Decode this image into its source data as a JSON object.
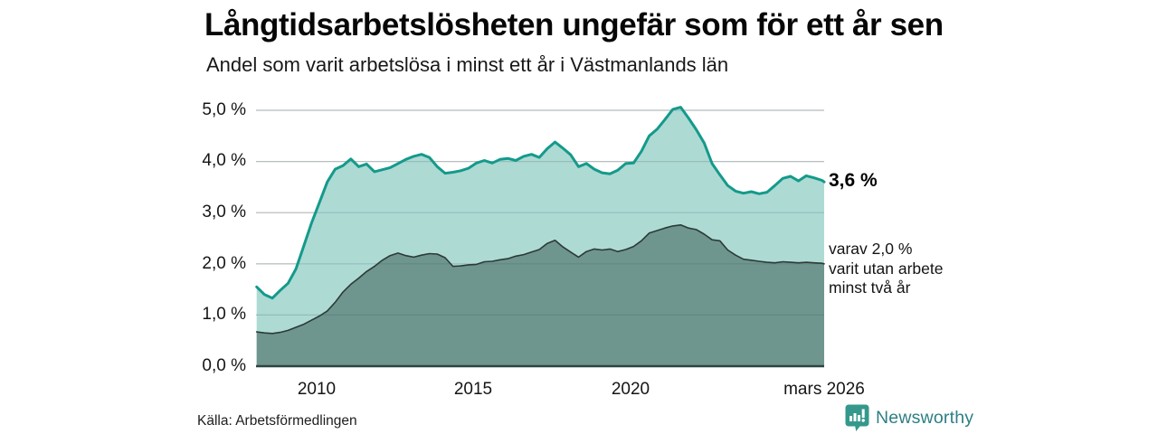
{
  "footer": {
    "source": "Källa: Arbetsförmedlingen",
    "brand": "Newsworthy",
    "brand_color": "#2e7f85",
    "brand_icon": "newsworthy-bar-chart-bubble-icon",
    "brand_icon_color": "#35988c"
  },
  "chart_data": {
    "type": "area",
    "title": "Långtidsarbetslösheten ungefär som för ett år sen",
    "subtitle": "Andel som varit arbetslösa i minst ett år i Västmanlands län",
    "x_note": "tid i decimalår, februari 2008 till mars 2026",
    "x": [
      2008.1,
      2008.35,
      2008.6,
      2008.85,
      2009.1,
      2009.35,
      2009.6,
      2009.85,
      2010.1,
      2010.35,
      2010.6,
      2010.85,
      2011.1,
      2011.35,
      2011.6,
      2011.85,
      2012.1,
      2012.35,
      2012.6,
      2012.85,
      2013.1,
      2013.35,
      2013.6,
      2013.85,
      2014.1,
      2014.35,
      2014.6,
      2014.85,
      2015.1,
      2015.35,
      2015.6,
      2015.85,
      2016.1,
      2016.35,
      2016.6,
      2016.85,
      2017.1,
      2017.35,
      2017.6,
      2017.85,
      2018.1,
      2018.35,
      2018.6,
      2018.85,
      2019.1,
      2019.35,
      2019.6,
      2019.85,
      2020.1,
      2020.35,
      2020.6,
      2020.85,
      2021.1,
      2021.35,
      2021.6,
      2021.85,
      2022.1,
      2022.35,
      2022.6,
      2022.85,
      2023.1,
      2023.35,
      2023.6,
      2023.85,
      2024.1,
      2024.35,
      2024.6,
      2024.85,
      2025.1,
      2025.35,
      2025.6,
      2025.85,
      2026.1,
      2026.17
    ],
    "series": [
      {
        "name": "Andel som varit arbetslösa i minst ett år",
        "end_label": "3,6 %",
        "latest_value": 3.6,
        "line_color": "#149a8b",
        "fill_color": "#aedad4",
        "line_width": 3,
        "values": [
          1.55,
          1.4,
          1.33,
          1.48,
          1.62,
          1.9,
          2.35,
          2.8,
          3.2,
          3.6,
          3.85,
          3.92,
          4.05,
          3.9,
          3.95,
          3.8,
          3.84,
          3.88,
          3.96,
          4.04,
          4.1,
          4.14,
          4.08,
          3.9,
          3.77,
          3.79,
          3.82,
          3.87,
          3.97,
          4.02,
          3.97,
          4.04,
          4.06,
          4.02,
          4.1,
          4.14,
          4.08,
          4.25,
          4.38,
          4.26,
          4.13,
          3.9,
          3.96,
          3.85,
          3.78,
          3.76,
          3.83,
          3.96,
          3.97,
          4.2,
          4.5,
          4.63,
          4.82,
          5.02,
          5.06,
          4.85,
          4.62,
          4.36,
          3.96,
          3.74,
          3.53,
          3.42,
          3.38,
          3.41,
          3.37,
          3.4,
          3.53,
          3.67,
          3.71,
          3.62,
          3.72,
          3.68,
          3.63,
          3.6
        ]
      },
      {
        "name": "varav utan arbete minst två år",
        "end_label_lines": [
          "varav 2,0 %",
          "varit utan arbete",
          "minst två år"
        ],
        "latest_value": 2.0,
        "line_color": "#2c3a37",
        "fill_color": "#6e968f",
        "line_width": 1.6,
        "values": [
          0.67,
          0.65,
          0.64,
          0.66,
          0.7,
          0.76,
          0.82,
          0.9,
          0.98,
          1.08,
          1.25,
          1.45,
          1.6,
          1.72,
          1.85,
          1.95,
          2.07,
          2.16,
          2.21,
          2.16,
          2.13,
          2.17,
          2.2,
          2.19,
          2.12,
          1.95,
          1.96,
          1.98,
          1.99,
          2.04,
          2.05,
          2.08,
          2.1,
          2.15,
          2.18,
          2.23,
          2.28,
          2.4,
          2.46,
          2.33,
          2.23,
          2.13,
          2.24,
          2.29,
          2.27,
          2.29,
          2.24,
          2.28,
          2.34,
          2.45,
          2.6,
          2.65,
          2.7,
          2.74,
          2.76,
          2.7,
          2.67,
          2.58,
          2.47,
          2.45,
          2.27,
          2.17,
          2.09,
          2.07,
          2.05,
          2.03,
          2.02,
          2.04,
          2.03,
          2.02,
          2.03,
          2.02,
          2.01,
          2.0
        ]
      }
    ],
    "xlim": [
      2008.08,
      2026.17
    ],
    "ylim": [
      0,
      5
    ],
    "yticks": [
      {
        "value": 5,
        "label": "5,0 %"
      },
      {
        "value": 4,
        "label": "4,0 %"
      },
      {
        "value": 3,
        "label": "3,0 %"
      },
      {
        "value": 2,
        "label": "2,0 %"
      },
      {
        "value": 1,
        "label": "1,0 %"
      },
      {
        "value": 0,
        "label": "0,0 %"
      }
    ],
    "xticks": [
      {
        "value": 2010,
        "label": "2010"
      },
      {
        "value": 2015,
        "label": "2015"
      },
      {
        "value": 2020,
        "label": "2020"
      },
      {
        "value": 2026.17,
        "label": "mars 2026"
      }
    ],
    "grid": true,
    "legend": "none",
    "gridline_color": "#d8dcdd",
    "axis_line_color": "#2c4540"
  }
}
